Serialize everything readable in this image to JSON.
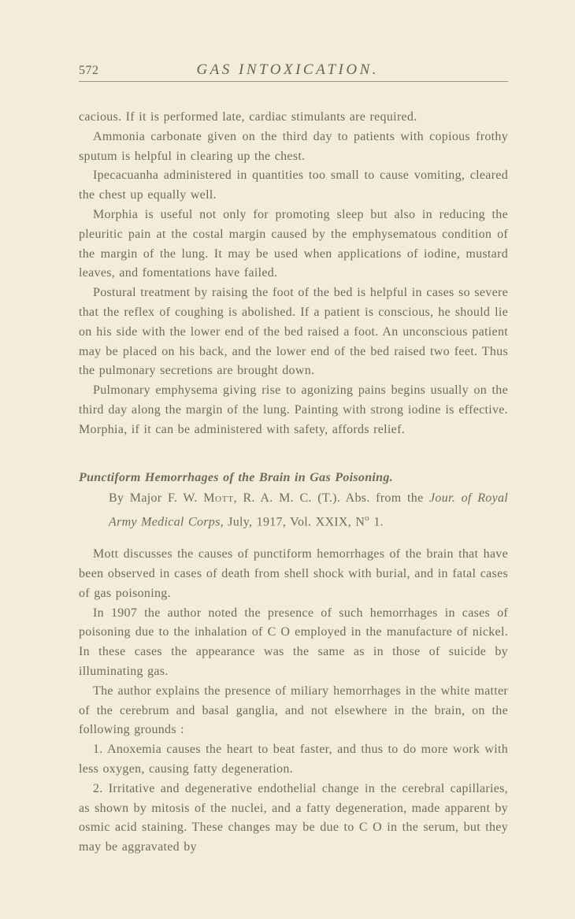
{
  "page": {
    "number": "572",
    "running_title": "GAS INTOXICATION.",
    "background": "#f2ecd9",
    "text_color": "#6f6a5e",
    "rule_color": "#9a9484",
    "font_family": "Times New Roman"
  },
  "paragraphs": {
    "p1": "cacious.  If it is performed late, cardiac stimulants are required.",
    "p2": "Ammonia carbonate given on the third day to patients with copious frothy sputum is helpful in clearing up the chest.",
    "p3": "Ipecacuanha administered in quantities too small to cause vomiting, cleared the chest up equally well.",
    "p4": "Morphia is useful not only for promoting sleep but also in reducing the pleuritic pain at the costal margin caused by the emphysematous condition of the margin of the lung.  It may be used when applications of iodine, mustard leaves, and fomentations have failed.",
    "p5": "Postural treatment by raising the foot of the bed is helpful in cases so severe that the reflex of coughing is abolished.  If a patient is conscious, he should lie on his side with the lower end of the bed raised a foot.  An unconscious patient may be placed on his back, and the lower end of the bed raised two feet.  Thus the pulmonary secretions are brought down.",
    "p6": "Pulmonary emphysema giving rise to agonizing pains begins usually on the third day along the margin of the lung.  Painting with strong iodine is effective.  Morphia, if it can be administered with safety, affords relief."
  },
  "entry": {
    "title": "Punctiform Hemorrhages of the Brain in Gas Poisoning.",
    "author_prefix": "By Major F. W. ",
    "author_sc": "Mott",
    "author_suffix": ", R. A. M. C. (T.).  Abs. from the ",
    "journal": "Jour. of Royal Army Medical Corps",
    "meta_tail": ", July, 1917, Vol. XXIX, N",
    "meta_sup": "o",
    "meta_end": " 1."
  },
  "paragraphs2": {
    "p7": "Mott discusses the causes of punctiform hemorrhages of the brain that have been observed in cases of death from shell shock with burial, and in fatal cases of gas poisoning.",
    "p8": "In 1907 the author noted the presence of such hemorrhages in cases of poisoning due to the inhalation of C O employed in the manufacture of nickel.  In these cases the appearance was the same as in those of suicide by illuminating gas.",
    "p9": "The author explains the presence of miliary hemorrhages in the white matter of the cerebrum and basal ganglia, and not elsewhere in the brain, on the following grounds :",
    "p10": "1. Anoxemia causes the heart to beat faster, and thus to do more work with less oxygen, causing fatty degeneration.",
    "p11": "2. Irritative and degenerative endothelial change in the cerebral capillaries, as shown by mitosis of the nuclei, and a fatty degeneration, made apparent by osmic acid staining.  These changes may be due to C O in the serum, but they may be aggravated by"
  }
}
